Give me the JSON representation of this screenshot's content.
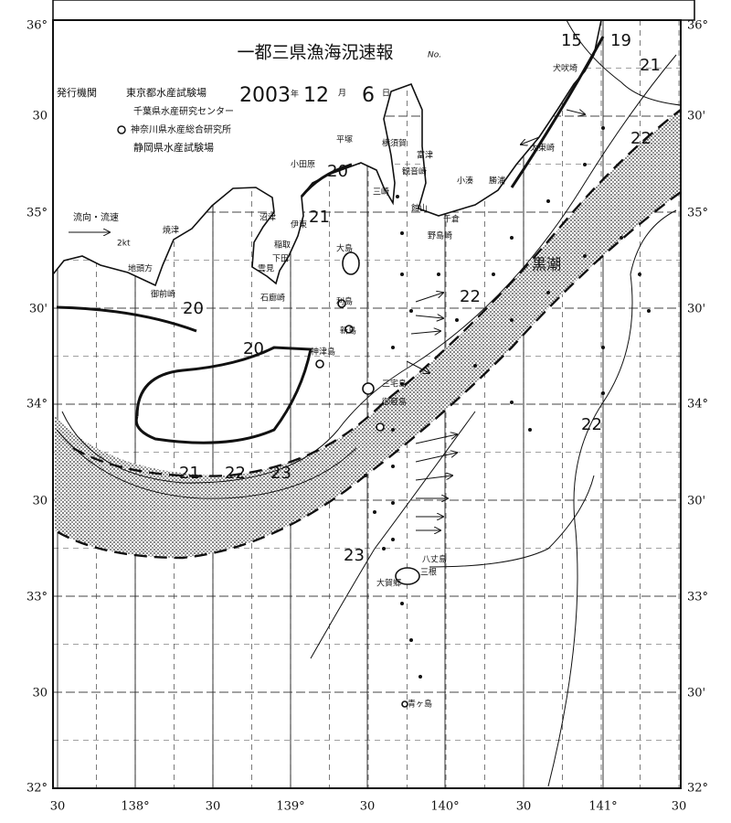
{
  "title": "一都三県漁海況速報",
  "title_no": "No.",
  "issuer": {
    "label": "発行機関",
    "orgs": [
      "東京都水産試験場",
      "千葉県水産研究センター",
      "神奈川県水産総合研究所",
      "静岡県水産試験場"
    ]
  },
  "date": {
    "year": "2003",
    "year_unit": "年",
    "month": "12",
    "month_unit": "月",
    "day": "6",
    "day_unit": "日"
  },
  "legend": {
    "label": "流向・流速",
    "scale": "2kt"
  },
  "current_label": "黒潮",
  "lat_labels_left": [
    "36°",
    "30",
    "35°",
    "30'",
    "34°",
    "30",
    "33°",
    "30",
    "32°"
  ],
  "lat_labels_right": [
    "36°",
    "30'",
    "35°",
    "30'",
    "34°",
    "30'",
    "33°",
    "30'",
    "32°"
  ],
  "lon_labels": [
    "30",
    "138°",
    "30",
    "139°",
    "30",
    "140°",
    "30",
    "141°",
    "30"
  ],
  "places": [
    "焼津",
    "沼津",
    "伊東",
    "稲取",
    "下田",
    "雲見",
    "石廊崎",
    "御前崎",
    "地頭方",
    "小田原",
    "平塚",
    "横須賀",
    "富津",
    "観音崎",
    "三崎",
    "館山",
    "千倉",
    "野島崎",
    "小湊",
    "勝浦",
    "太東崎",
    "犬吠埼",
    "大島",
    "利島",
    "新島",
    "神津島",
    "三宅島",
    "御蔵島",
    "八丈島",
    "大賀郷",
    "三根",
    "青ヶ島"
  ],
  "isotherm_labels": [
    "15",
    "19",
    "21",
    "22",
    "20",
    "21",
    "22",
    "20",
    "20",
    "22",
    "21",
    "22",
    "23",
    "23"
  ]
}
